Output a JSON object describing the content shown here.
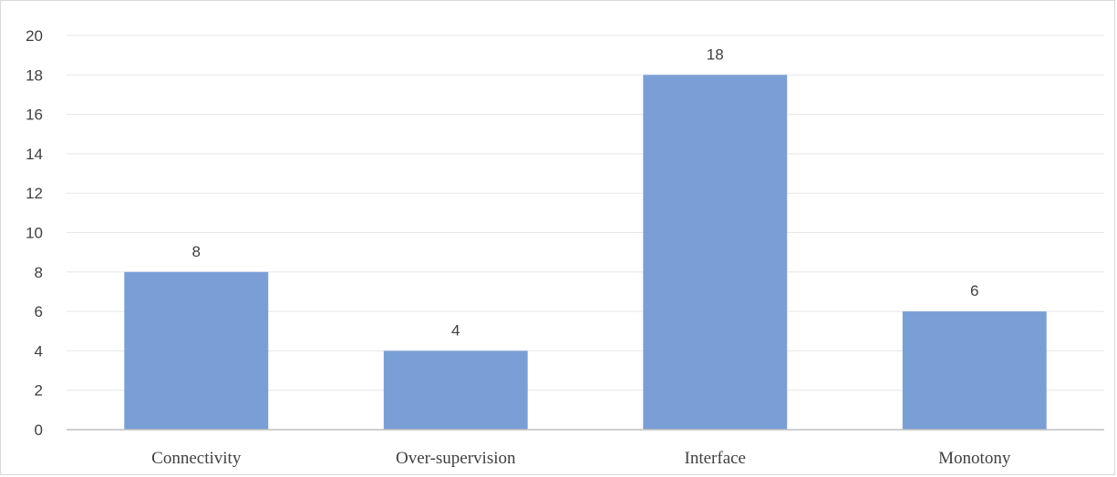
{
  "chart_data": {
    "type": "bar",
    "categories": [
      "Connectivity",
      "Over-supervision",
      "Interface",
      "Monotony"
    ],
    "values": [
      8,
      4,
      18,
      6
    ],
    "title": "",
    "xlabel": "",
    "ylabel": "",
    "ylim": [
      0,
      20
    ],
    "yticks": [
      0,
      2,
      4,
      6,
      8,
      10,
      12,
      14,
      16,
      18,
      20
    ],
    "grid": true,
    "legend": "none",
    "data_labels": true,
    "colors": {
      "bar": "#7a9fd7",
      "grid": "#e6e6e6",
      "axis": "#bfbfbf",
      "text": "#404040"
    }
  }
}
